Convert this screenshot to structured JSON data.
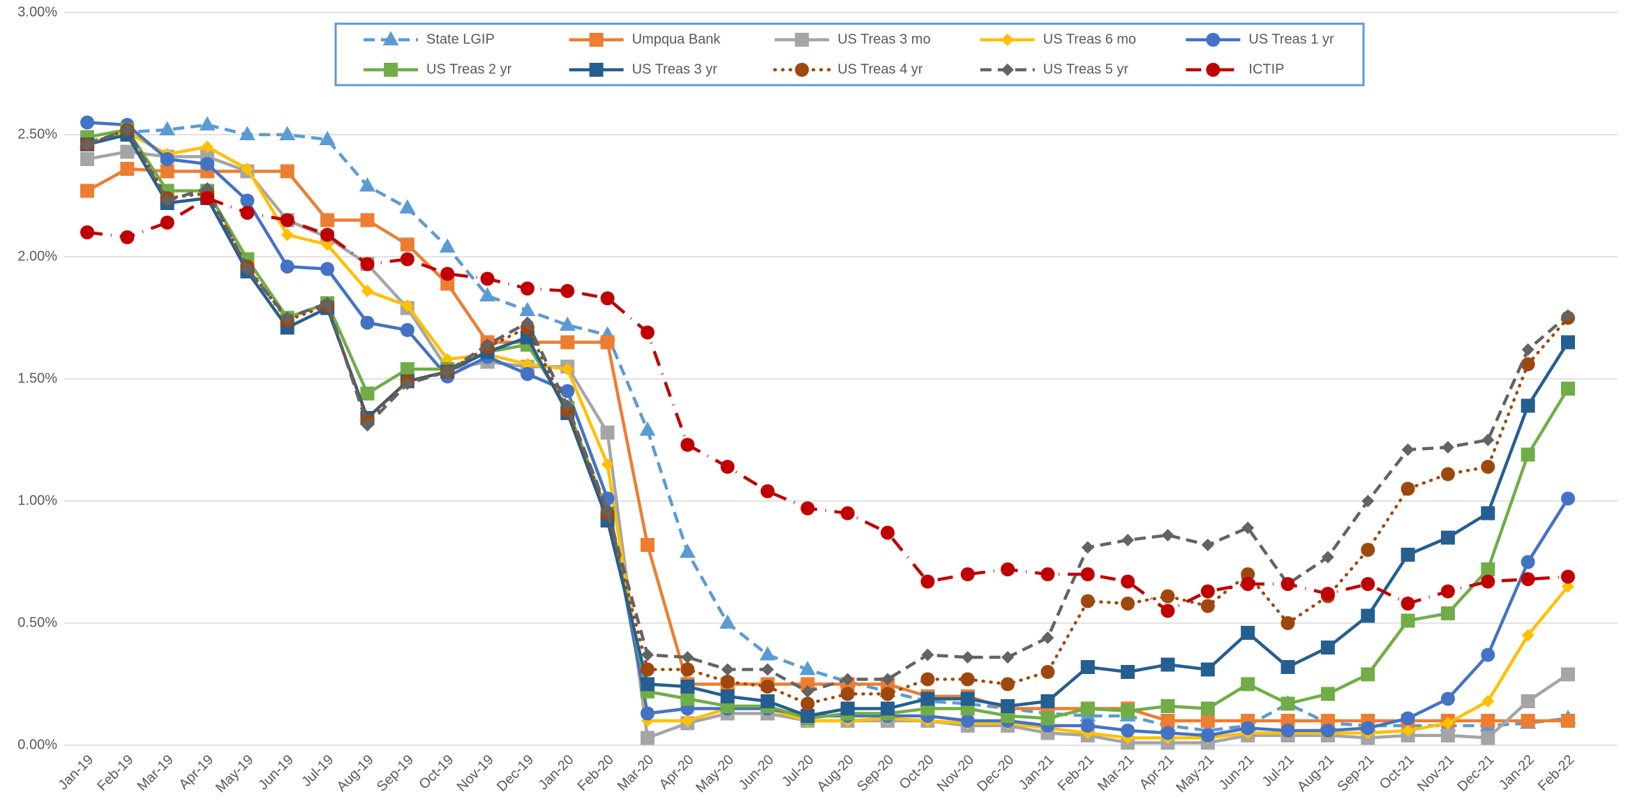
{
  "chart_data": {
    "type": "line",
    "categories": [
      "Jan-19",
      "Feb-19",
      "Mar-19",
      "Apr-19",
      "May-19",
      "Jun-19",
      "Jul-19",
      "Aug-19",
      "Sep-19",
      "Oct-19",
      "Nov-19",
      "Dec-19",
      "Jan-20",
      "Feb-20",
      "Mar-20",
      "Apr-20",
      "May-20",
      "Jun-20",
      "Jul-20",
      "Aug-20",
      "Sep-20",
      "Oct-20",
      "Nov-20",
      "Dec-20",
      "Jan-21",
      "Feb-21",
      "Mar-21",
      "Apr-21",
      "May-21",
      "Jun-21",
      "Jul-21",
      "Aug-21",
      "Sep-21",
      "Oct-21",
      "Nov-21",
      "Dec-21",
      "Jan-22",
      "Feb-22"
    ],
    "ylim": [
      0,
      3
    ],
    "yticks": [
      {
        "value": 0,
        "label": "0.00%"
      },
      {
        "value": 0.5,
        "label": "0.50%"
      },
      {
        "value": 1,
        "label": "1.00%"
      },
      {
        "value": 1.5,
        "label": "1.50%"
      },
      {
        "value": 2,
        "label": "2.00%"
      },
      {
        "value": 2.5,
        "label": "2.50%"
      },
      {
        "value": 3,
        "label": "3.00%"
      }
    ],
    "grid": true,
    "legend": "top",
    "series": [
      {
        "name": "State LGIP",
        "color": "#5b9bd5",
        "dash": "dashed",
        "marker": "triangle",
        "values": [
          2.47,
          2.51,
          2.52,
          2.54,
          2.5,
          2.5,
          2.48,
          2.29,
          2.2,
          2.04,
          1.84,
          1.78,
          1.72,
          1.68,
          1.29,
          0.79,
          0.5,
          0.37,
          0.31,
          0.26,
          0.22,
          0.18,
          0.17,
          0.15,
          0.13,
          0.12,
          0.12,
          0.08,
          0.06,
          0.08,
          0.17,
          0.09,
          0.08,
          0.08,
          0.08,
          0.08,
          0.09,
          0.11
        ]
      },
      {
        "name": "Umpqua Bank",
        "color": "#ed7d31",
        "dash": "solid",
        "marker": "square",
        "values": [
          2.27,
          2.36,
          2.35,
          2.35,
          2.35,
          2.35,
          2.15,
          2.15,
          2.05,
          1.89,
          1.65,
          1.65,
          1.65,
          1.65,
          0.82,
          0.25,
          0.25,
          0.25,
          0.25,
          0.25,
          0.25,
          0.2,
          0.2,
          0.15,
          0.15,
          0.15,
          0.15,
          0.1,
          0.1,
          0.1,
          0.1,
          0.1,
          0.1,
          0.1,
          0.1,
          0.1,
          0.1,
          0.1
        ]
      },
      {
        "name": "US Treas 3 mo",
        "color": "#a5a5a5",
        "dash": "solid",
        "marker": "square",
        "values": [
          2.4,
          2.43,
          2.41,
          2.41,
          2.35,
          2.15,
          2.08,
          1.97,
          1.79,
          1.54,
          1.57,
          1.55,
          1.55,
          1.28,
          0.03,
          0.09,
          0.13,
          0.13,
          0.1,
          0.1,
          0.1,
          0.1,
          0.08,
          0.08,
          0.05,
          0.04,
          0.01,
          0.01,
          0.01,
          0.04,
          0.04,
          0.04,
          0.03,
          0.04,
          0.04,
          0.03,
          0.18,
          0.29
        ]
      },
      {
        "name": "US Treas 6 mo",
        "color": "#ffc000",
        "dash": "solid",
        "marker": "diamond",
        "values": [
          2.46,
          2.51,
          2.42,
          2.45,
          2.36,
          2.09,
          2.05,
          1.86,
          1.8,
          1.58,
          1.6,
          1.56,
          1.54,
          1.15,
          0.1,
          0.1,
          0.15,
          0.15,
          0.1,
          0.1,
          0.11,
          0.1,
          0.09,
          0.09,
          0.07,
          0.05,
          0.03,
          0.03,
          0.03,
          0.05,
          0.05,
          0.05,
          0.05,
          0.06,
          0.09,
          0.18,
          0.45,
          0.65
        ]
      },
      {
        "name": "US Treas 1 yr",
        "color": "#4472c4",
        "dash": "solid",
        "marker": "circle",
        "values": [
          2.55,
          2.54,
          2.4,
          2.38,
          2.23,
          1.96,
          1.95,
          1.73,
          1.7,
          1.51,
          1.59,
          1.52,
          1.45,
          1.01,
          0.13,
          0.15,
          0.15,
          0.15,
          0.12,
          0.12,
          0.12,
          0.12,
          0.1,
          0.1,
          0.08,
          0.08,
          0.06,
          0.05,
          0.04,
          0.07,
          0.06,
          0.06,
          0.07,
          0.11,
          0.19,
          0.37,
          0.75,
          1.01
        ]
      },
      {
        "name": "US Treas 2 yr",
        "color": "#70ad47",
        "dash": "solid",
        "marker": "square",
        "values": [
          2.49,
          2.52,
          2.27,
          2.27,
          1.99,
          1.75,
          1.81,
          1.44,
          1.54,
          1.54,
          1.61,
          1.64,
          1.38,
          0.95,
          0.22,
          0.19,
          0.16,
          0.16,
          0.11,
          0.13,
          0.13,
          0.15,
          0.15,
          0.12,
          0.11,
          0.15,
          0.14,
          0.16,
          0.15,
          0.25,
          0.17,
          0.21,
          0.29,
          0.51,
          0.54,
          0.72,
          1.19,
          1.46
        ]
      },
      {
        "name": "US Treas 3 yr",
        "color": "#255e91",
        "dash": "solid",
        "marker": "square",
        "values": [
          2.46,
          2.5,
          2.22,
          2.24,
          1.94,
          1.71,
          1.79,
          1.34,
          1.49,
          1.53,
          1.61,
          1.67,
          1.36,
          0.92,
          0.25,
          0.24,
          0.2,
          0.18,
          0.12,
          0.15,
          0.15,
          0.19,
          0.19,
          0.16,
          0.18,
          0.32,
          0.3,
          0.33,
          0.31,
          0.46,
          0.32,
          0.4,
          0.53,
          0.78,
          0.85,
          0.95,
          1.39,
          1.65
        ]
      },
      {
        "name": "US Treas 4 yr",
        "color": "#9e480e",
        "dash": "dotted",
        "marker": "circle",
        "values": [
          2.46,
          2.52,
          2.24,
          2.26,
          1.96,
          1.74,
          1.8,
          1.33,
          1.49,
          1.53,
          1.63,
          1.71,
          1.37,
          0.95,
          0.31,
          0.31,
          0.26,
          0.24,
          0.17,
          0.21,
          0.21,
          0.27,
          0.27,
          0.25,
          0.3,
          0.59,
          0.58,
          0.61,
          0.57,
          0.7,
          0.5,
          0.61,
          0.8,
          1.05,
          1.11,
          1.14,
          1.56,
          1.75
        ]
      },
      {
        "name": "US Treas 5 yr",
        "color": "#636363",
        "dash": "dashed",
        "marker": "diamond",
        "values": [
          2.46,
          2.52,
          2.23,
          2.28,
          1.95,
          1.75,
          1.81,
          1.31,
          1.48,
          1.53,
          1.64,
          1.73,
          1.39,
          0.96,
          0.37,
          0.36,
          0.31,
          0.31,
          0.22,
          0.27,
          0.27,
          0.37,
          0.36,
          0.36,
          0.44,
          0.81,
          0.84,
          0.86,
          0.82,
          0.89,
          0.66,
          0.77,
          1.0,
          1.21,
          1.22,
          1.25,
          1.62,
          1.76
        ]
      },
      {
        "name": "ICTIP",
        "color": "#c00000",
        "dash": "dashdot",
        "marker": "circle",
        "values": [
          2.1,
          2.08,
          2.14,
          2.24,
          2.18,
          2.15,
          2.09,
          1.97,
          1.99,
          1.93,
          1.91,
          1.87,
          1.86,
          1.83,
          1.69,
          1.23,
          1.14,
          1.04,
          0.97,
          0.95,
          0.87,
          0.67,
          0.7,
          0.72,
          0.7,
          0.7,
          0.67,
          0.55,
          0.63,
          0.66,
          0.66,
          0.62,
          0.66,
          0.58,
          0.63,
          0.67,
          0.68,
          0.69
        ]
      }
    ]
  }
}
